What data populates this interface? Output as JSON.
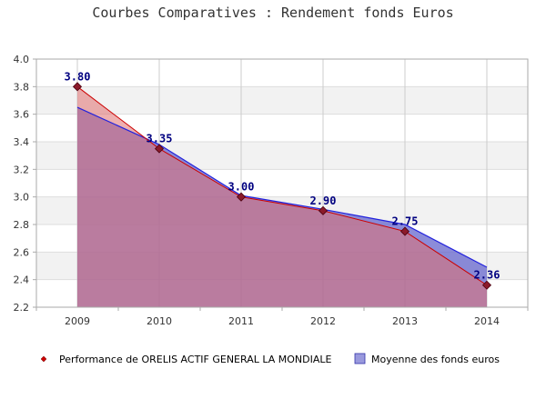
{
  "chart_data": {
    "type": "area",
    "title": "Courbes Comparatives : Rendement fonds Euros",
    "xlabel": "",
    "ylabel": "",
    "categories": [
      "2009",
      "2010",
      "2011",
      "2012",
      "2013",
      "2014"
    ],
    "ylim": [
      2.2,
      4.0
    ],
    "yticks": [
      "2.2",
      "2.4",
      "2.6",
      "2.8",
      "3.0",
      "3.2",
      "3.4",
      "3.6",
      "3.8",
      "4.0"
    ],
    "grid": true,
    "legend_position": "bottom",
    "series": [
      {
        "name": "Performance de ORELIS ACTIF GENERAL LA MONDIALE",
        "values": [
          3.8,
          3.35,
          3.0,
          2.9,
          2.75,
          2.36
        ],
        "data_labels": [
          "3.80",
          "3.35",
          "3.00",
          "2.90",
          "2.75",
          "2.36"
        ],
        "color": "#cc0000",
        "fill": "#e07070"
      },
      {
        "name": "Moyenne des fonds euros",
        "values": [
          3.65,
          3.38,
          3.01,
          2.91,
          2.8,
          2.49
        ],
        "color": "#2222dd",
        "fill": "#6666cc"
      }
    ]
  }
}
